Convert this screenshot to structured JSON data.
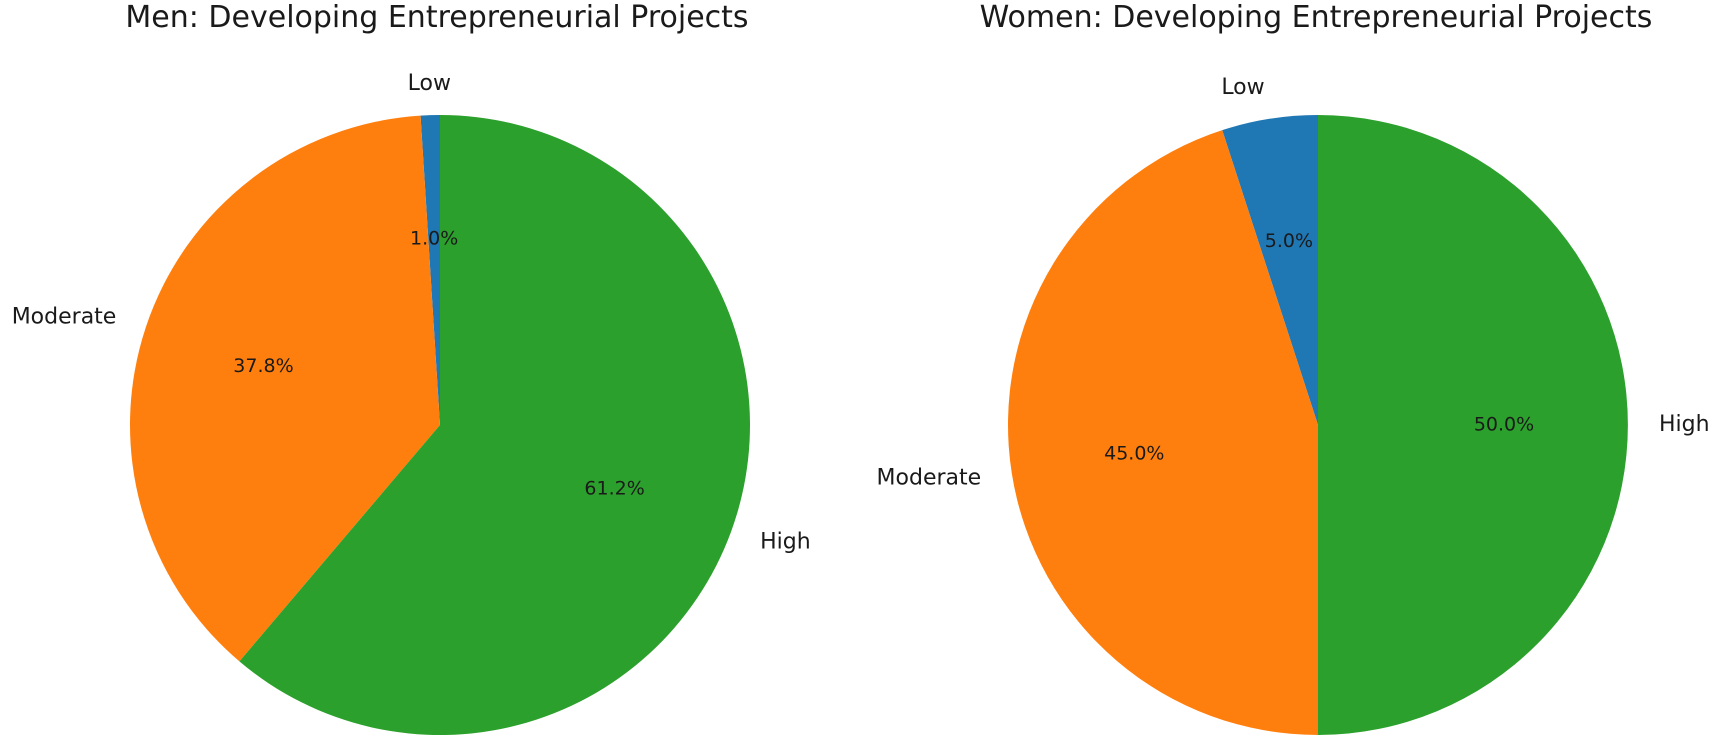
{
  "figure": {
    "charts": [
      {
        "title": "Men: Developing Entrepreneurial Projects"
      },
      {
        "title": "Women: Developing Entrepreneurial Projects"
      }
    ]
  },
  "chart_data": [
    {
      "type": "pie",
      "title": "Men: Developing Entrepreneurial Projects",
      "categories": [
        "Low",
        "Moderate",
        "High"
      ],
      "values": [
        1.0,
        37.8,
        61.2
      ],
      "value_labels": [
        "1.0%",
        "37.8%",
        "61.2%"
      ],
      "colors": [
        "#1f77b4",
        "#ff7f0e",
        "#2ca02c"
      ],
      "start_angle": "12 o'clock",
      "direction": "counterclockwise"
    },
    {
      "type": "pie",
      "title": "Women: Developing Entrepreneurial Projects",
      "categories": [
        "Low",
        "Moderate",
        "High"
      ],
      "values": [
        5.0,
        45.0,
        50.0
      ],
      "value_labels": [
        "5.0%",
        "45.0%",
        "50.0%"
      ],
      "colors": [
        "#1f77b4",
        "#ff7f0e",
        "#2ca02c"
      ],
      "start_angle": "12 o'clock",
      "direction": "counterclockwise"
    }
  ]
}
